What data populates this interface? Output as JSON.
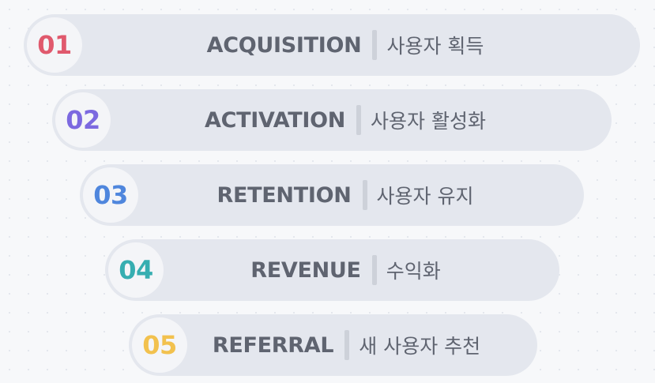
{
  "stages": [
    {
      "number": "01",
      "title": "ACQUISITION",
      "subtitle": "사용자 획득",
      "color": "#e0596d"
    },
    {
      "number": "02",
      "title": "ACTIVATION",
      "subtitle": "사용자 활성화",
      "color": "#7c69e0"
    },
    {
      "number": "03",
      "title": "RETENTION",
      "subtitle": "사용자 유지",
      "color": "#4f86dd"
    },
    {
      "number": "04",
      "title": "REVENUE",
      "subtitle": "수익화",
      "color": "#36aeb1"
    },
    {
      "number": "05",
      "title": "REFERRAL",
      "subtitle": "새 사용자 추천",
      "color": "#f2c14e"
    }
  ]
}
